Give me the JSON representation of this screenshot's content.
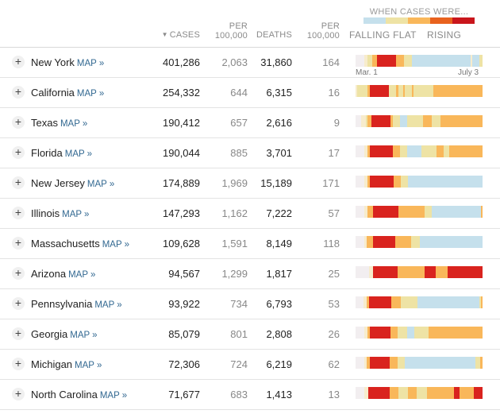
{
  "header": {
    "cases_label": "CASES",
    "sort_arrow": "▼",
    "per_label_1": "PER",
    "per_label_2": "100,000",
    "deaths_label": "DEATHS"
  },
  "legend": {
    "title": "WHEN CASES WERE...",
    "falling_flat": "FALLING FLAT",
    "rising": "RISING",
    "colors": [
      "#c5e0ec",
      "#eee3a5",
      "#f9b75a",
      "#e8621e",
      "#c9161c"
    ]
  },
  "date_labels": {
    "start": "Mar. 1",
    "end": "July 3"
  },
  "map_link_label": "MAP »",
  "expand_symbol": "+",
  "rows": [
    {
      "state": "New York",
      "cases": "401,286",
      "cases_per_100k": "2,063",
      "deaths": "31,860",
      "deaths_per_100k": "164",
      "trend": "ffffffwwyyyooorrrrrrrrrrrrroooooyyyyybbbbbbbbbbbbbbbbbbbbbbbbbbbbbbbbbbbbbbbwbbbbbyy"
    },
    {
      "state": "California",
      "cases": "254,332",
      "cases_per_100k": "644",
      "deaths": "6,315",
      "deaths_per_100k": "16",
      "trend": "wyyyyyyyoorrrrrrrrrrrrryyyyyooyyyoyyyyyoyyyyyyyyyyyyyyoooooooooooooooooooooooooooooooooo"
    },
    {
      "state": "Texas",
      "cases": "190,412",
      "cases_per_100k": "657",
      "deaths": "2,616",
      "deaths_per_100k": "9",
      "trend": "ffffwwwyooorrrrrrrrrrrrrooyyyyybbbbbyyyyyyyyyyyooooooyyyyyyooooooooooooooooooooooooooooo"
    },
    {
      "state": "Florida",
      "cases": "190,044",
      "cases_per_100k": "885",
      "deaths": "3,701",
      "deaths_per_100k": "17",
      "trend": "ffffffwwoorrrrrrrrrrrrrrrroooooyyyyybbbbbbbbbbyyyyyyyyyyoooooyyyyooooooooooooooooooooooo"
    },
    {
      "state": "New Jersey",
      "cases": "174,889",
      "cases_per_100k": "1,969",
      "deaths": "15,189",
      "deaths_per_100k": "171",
      "trend": "ffffffwwoorrrrrrrrrrrrrrrroooooyyyyybbbbbbbbbbbbbbbbbbbbbbbbbbbbbbbbbbbbbbbbbbbbbbbbbbb"
    },
    {
      "state": "Illinois",
      "cases": "147,293",
      "cases_per_100k": "1,162",
      "deaths": "7,222",
      "deaths_per_100k": "57",
      "trend": "ffffffwwoooorrrrrrrrrrrrrrrrrrooooooooooooooooooyyyyybbbbbbbbbbbbbbbbbbbbbbbbbbbbbbbbbbo"
    },
    {
      "state": "Massachusetts",
      "cases": "109,628",
      "cases_per_100k": "1,591",
      "deaths": "8,149",
      "deaths_per_100k": "118",
      "trend": "ffffffwwoooorrrrrrrrrrrrrrrroooooooooooyyyyyybbbbbbbbbbbbbbbbbbbbbbbbbbbbbbbbbbbbbbbbbbbb"
    },
    {
      "state": "Arizona",
      "cases": "94,567",
      "cases_per_100k": "1,299",
      "deaths": "1,817",
      "deaths_per_100k": "25",
      "trend": "fffffffffwwwrrrrrrrrrrrrrrrrroooooooooooooooooorrrrrrrroooooooorrrrrrrrrrrrrrrrrrrrrrrr"
    },
    {
      "state": "Pennsylvania",
      "cases": "93,922",
      "cases_per_100k": "734",
      "deaths": "6,793",
      "deaths_per_100k": "53",
      "trend": "ffffffwwoorrrrrrrrrrrrrrrroooooooyyyyyyyyyyyybbbbbbbbbbbbbbbbbbbbbbbbbbbbbbbbbbbbbbbbbbbbbyo"
    },
    {
      "state": "Georgia",
      "cases": "85,079",
      "cases_per_100k": "801",
      "deaths": "2,808",
      "deaths_per_100k": "26",
      "trend": "ffffffwwoorrrrrrrrrrrrrroooooyyyyyyybbbbbyyyyyyyyyyooooooooooooooooooooooooooooooooooooo"
    },
    {
      "state": "Michigan",
      "cases": "72,306",
      "cases_per_100k": "724",
      "deaths": "6,219",
      "deaths_per_100k": "62",
      "trend": "ffffffwwoorrrrrrrrrrrrrrooooooyyyyybbbbbbbbbbbbbbbbbbbbbbbbbbbbbbbbbbbbbbbbbbbbbbbbbbyyyoo"
    },
    {
      "state": "North Carolina",
      "cases": "71,677",
      "cases_per_100k": "683",
      "deaths": "1,413",
      "deaths_per_100k": "13",
      "trend": "ffffffwwwrrrrrrrrrrrrrrrooooooyyyyyyyooooooyyyyyyyooooooooooooooooooorrrroooooooooorrrrrr"
    }
  ]
}
